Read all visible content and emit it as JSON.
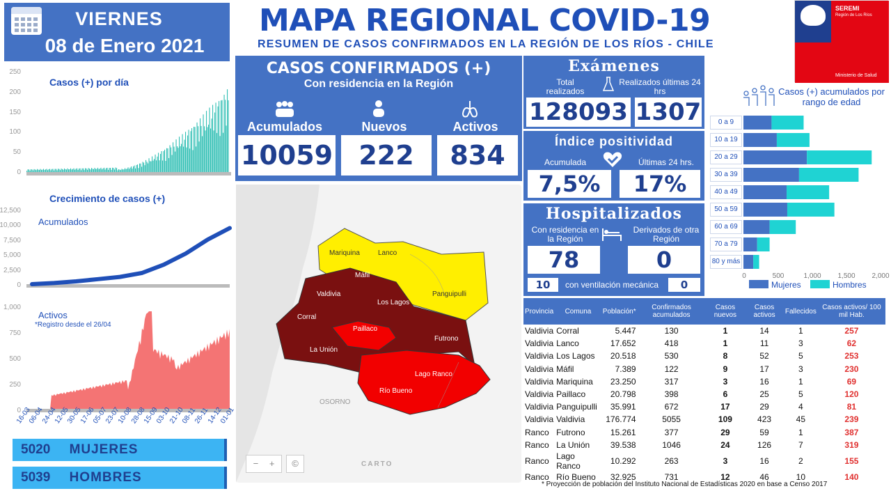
{
  "header": {
    "day": "VIERNES",
    "date": "08 de Enero 2021",
    "title": "MAPA REGIONAL COVID-19",
    "subtitle": "RESUMEN DE CASOS CONFIRMADOS EN LA REGIÓN DE LOS RÍOS - CHILE",
    "logo_top": "SEREMI",
    "logo_region": "Región de Los Ríos",
    "logo_ministry": "Ministerio de Salud"
  },
  "cases_panel": {
    "title": "CASOS CONFIRMADOS (+)",
    "subtitle": "Con residencia en la Región",
    "accumulated_label": "Acumulados",
    "accumulated": "10059",
    "new_label": "Nuevos",
    "new": "222",
    "active_label": "Activos",
    "active": "834"
  },
  "exams": {
    "title": "Exámenes",
    "total_label": "Total realizados",
    "last24_label": "Realizados últimas 24 hrs",
    "total": "128093",
    "last24": "1307"
  },
  "positivity": {
    "title": "Índice positividad",
    "acc_label": "Acumulada",
    "last24_label": "Últimas 24 hrs.",
    "acc": "7,5%",
    "last24": "17%"
  },
  "hospital": {
    "title": "Hospitalizados",
    "resident_label": "Con residencia en la Región",
    "derived_label": "Derivados de otra Región",
    "resident": "78",
    "derived": "0",
    "vent_resident": "10",
    "vent_label": "con ventilación mecánica",
    "vent_derived": "0"
  },
  "gender": {
    "women_count": "5020",
    "women_label": "MUJERES",
    "men_count": "5039",
    "men_label": "HOMBRES"
  },
  "map": {
    "labels": [
      "Mariquina",
      "Lanco",
      "Panguipulli",
      "Máfil",
      "Valdivia",
      "Los Lagos",
      "Corral",
      "Paillaco",
      "Futrono",
      "La Unión",
      "Lago Ranco",
      "Río Bueno",
      "OSORNO"
    ],
    "attribution": "CARTO",
    "zoom_out": "−",
    "zoom_in": "+",
    "info": "©"
  },
  "colors": {
    "accent": "#4472c4",
    "teal": "#2fbfb3",
    "red_line": "#f25c5c",
    "cumulative": "#1f4fb8",
    "age_women": "#4472c4",
    "age_men": "#1fd3d3"
  },
  "chart_data": [
    {
      "type": "bar",
      "title": "Casos (+) por día",
      "ylim": [
        0,
        250
      ],
      "yticks": [
        "250",
        "200",
        "150",
        "100",
        "50",
        "0"
      ]
    },
    {
      "type": "area",
      "title": "Crecimiento de casos (+)",
      "series_label": "Acumulados",
      "ylim": [
        0,
        12500
      ],
      "yticks": [
        "12,500",
        "10,000",
        "7,500",
        "5,000",
        "2,500",
        "0"
      ],
      "values": [
        0,
        200,
        500,
        900,
        1300,
        2000,
        3500,
        5500,
        8000,
        10059
      ]
    },
    {
      "type": "area",
      "title": "Activos",
      "note": "*Registro desde el 26/04",
      "ylim": [
        0,
        1000
      ],
      "yticks": [
        "1,000",
        "750",
        "500",
        "250",
        "0"
      ],
      "x_tick_labels": [
        "16-03",
        "06-04",
        "24-04",
        "12-05",
        "30-05",
        "17-06",
        "05-07",
        "23-07",
        "10-08",
        "28-08",
        "15-09",
        "03-10",
        "21-10",
        "08-11",
        "26-11",
        "14-12",
        "01-01"
      ]
    },
    {
      "type": "bar",
      "title": "Casos (+) acumulados por rango de edad",
      "categories": [
        "0 a 9",
        "10 a 19",
        "20 a 29",
        "30 a 39",
        "40 a 49",
        "50 a 59",
        "60 a 69",
        "70 a 79",
        "80 y más"
      ],
      "series": [
        {
          "name": "Mujeres",
          "values": [
            430,
            510,
            970,
            850,
            660,
            670,
            400,
            210,
            150
          ]
        },
        {
          "name": "Hombres",
          "values": [
            490,
            500,
            990,
            910,
            650,
            720,
            400,
            190,
            90
          ]
        }
      ],
      "xticks": [
        "0",
        "500",
        "1,000",
        "1,500",
        "2,000"
      ],
      "xlim": [
        0,
        2000
      ]
    }
  ],
  "table": {
    "headers": [
      "Provincia",
      "Comuna",
      "Población*",
      "Confirmados acumulados",
      "Casos nuevos",
      "Casos activos",
      "Fallecidos",
      "Casos activos/ 100 mil Hab."
    ],
    "rows": [
      [
        "Valdivia",
        "Corral",
        "5.447",
        "130",
        "1",
        "14",
        "1",
        "257"
      ],
      [
        "Valdivia",
        "Lanco",
        "17.652",
        "418",
        "1",
        "11",
        "3",
        "62"
      ],
      [
        "Valdivia",
        "Los Lagos",
        "20.518",
        "530",
        "8",
        "52",
        "5",
        "253"
      ],
      [
        "Valdivia",
        "Máfil",
        "7.389",
        "122",
        "9",
        "17",
        "3",
        "230"
      ],
      [
        "Valdivia",
        "Mariquina",
        "23.250",
        "317",
        "3",
        "16",
        "1",
        "69"
      ],
      [
        "Valdivia",
        "Paillaco",
        "20.798",
        "398",
        "6",
        "25",
        "5",
        "120"
      ],
      [
        "Valdivia",
        "Panguipulli",
        "35.991",
        "672",
        "17",
        "29",
        "4",
        "81"
      ],
      [
        "Valdivia",
        "Valdivia",
        "176.774",
        "5055",
        "109",
        "423",
        "45",
        "239"
      ],
      [
        "Ranco",
        "Futrono",
        "15.261",
        "377",
        "29",
        "59",
        "1",
        "387"
      ],
      [
        "Ranco",
        "La Unión",
        "39.538",
        "1046",
        "24",
        "126",
        "7",
        "319"
      ],
      [
        "Ranco",
        "Lago Ranco",
        "10.292",
        "263",
        "3",
        "16",
        "2",
        "155"
      ],
      [
        "Ranco",
        "Río  Bueno",
        "32.925",
        "731",
        "12",
        "46",
        "10",
        "140"
      ]
    ],
    "note": "*  Proyección de población del Instituto Nacional de Estadísticas 2020 en base a Censo 2017"
  }
}
